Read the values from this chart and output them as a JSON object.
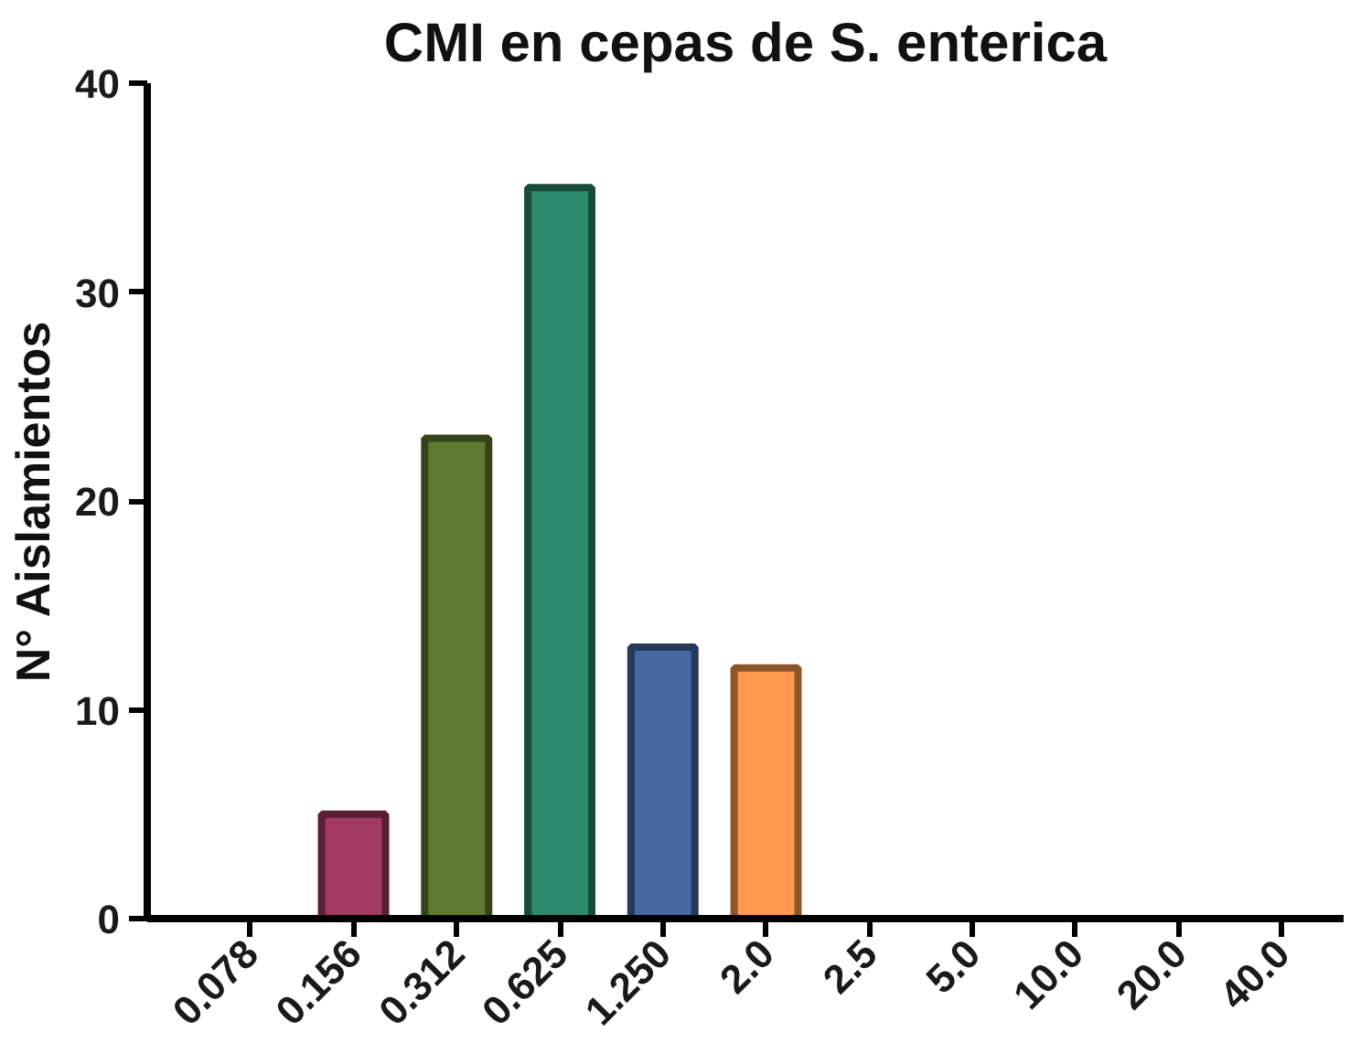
{
  "chart_data": {
    "type": "bar",
    "title": "CMI en cepas de S. enterica",
    "ylabel": "N° Aislamientos",
    "categories": [
      "0.078",
      "0.156",
      "0.312",
      "0.625",
      "1.250",
      "2.0",
      "2.5",
      "5.0",
      "10.0",
      "20.0",
      "40.0"
    ],
    "values": [
      0,
      5,
      23,
      35,
      13,
      12,
      0,
      0,
      0,
      0,
      0
    ],
    "colors": [
      "#000000",
      "#a33a62",
      "#5f7a2c",
      "#2e8a6c",
      "#4569a3",
      "#ff9a4c",
      "#000000",
      "#000000",
      "#000000",
      "#000000",
      "#000000"
    ],
    "ylim": [
      0,
      40
    ],
    "yticks": [
      0,
      10,
      20,
      30,
      40
    ],
    "grid": false
  }
}
